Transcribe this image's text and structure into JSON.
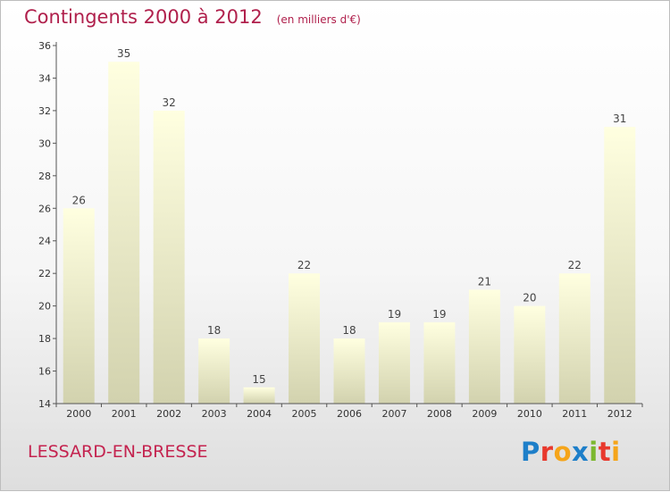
{
  "chart_title": "Contingents 2000 à 2012",
  "chart_subtitle": "(en milliers d'€)",
  "location": "LESSARD-EN-BRESSE",
  "logo": {
    "text": "Proxiti",
    "letters": [
      {
        "char": "P",
        "color": "#1e7fc9"
      },
      {
        "char": "r",
        "color": "#e8392d"
      },
      {
        "char": "o",
        "color": "#f5a51a"
      },
      {
        "char": "x",
        "color": "#1e7fc9"
      },
      {
        "char": "i",
        "color": "#7cb82f"
      },
      {
        "char": "t",
        "color": "#e8392d"
      },
      {
        "char": "i",
        "color": "#f5a51a"
      }
    ]
  },
  "chart_data": {
    "type": "bar",
    "title": "Contingents 2000 à 2012",
    "subtitle": "(en milliers d'€)",
    "categories": [
      "2000",
      "2001",
      "2002",
      "2003",
      "2004",
      "2005",
      "2006",
      "2007",
      "2008",
      "2009",
      "2010",
      "2011",
      "2012"
    ],
    "values": [
      26,
      35,
      32,
      18,
      15,
      22,
      18,
      19,
      19,
      21,
      20,
      22,
      31
    ],
    "xlabel": "",
    "ylabel": "",
    "ylim": [
      14,
      36
    ],
    "yticks": [
      14,
      16,
      18,
      20,
      22,
      24,
      26,
      28,
      30,
      32,
      34,
      36
    ],
    "grid": false,
    "legend": "none",
    "bar_color_top": "#ffffe0",
    "bar_color_bottom": "#d2d2ae"
  }
}
